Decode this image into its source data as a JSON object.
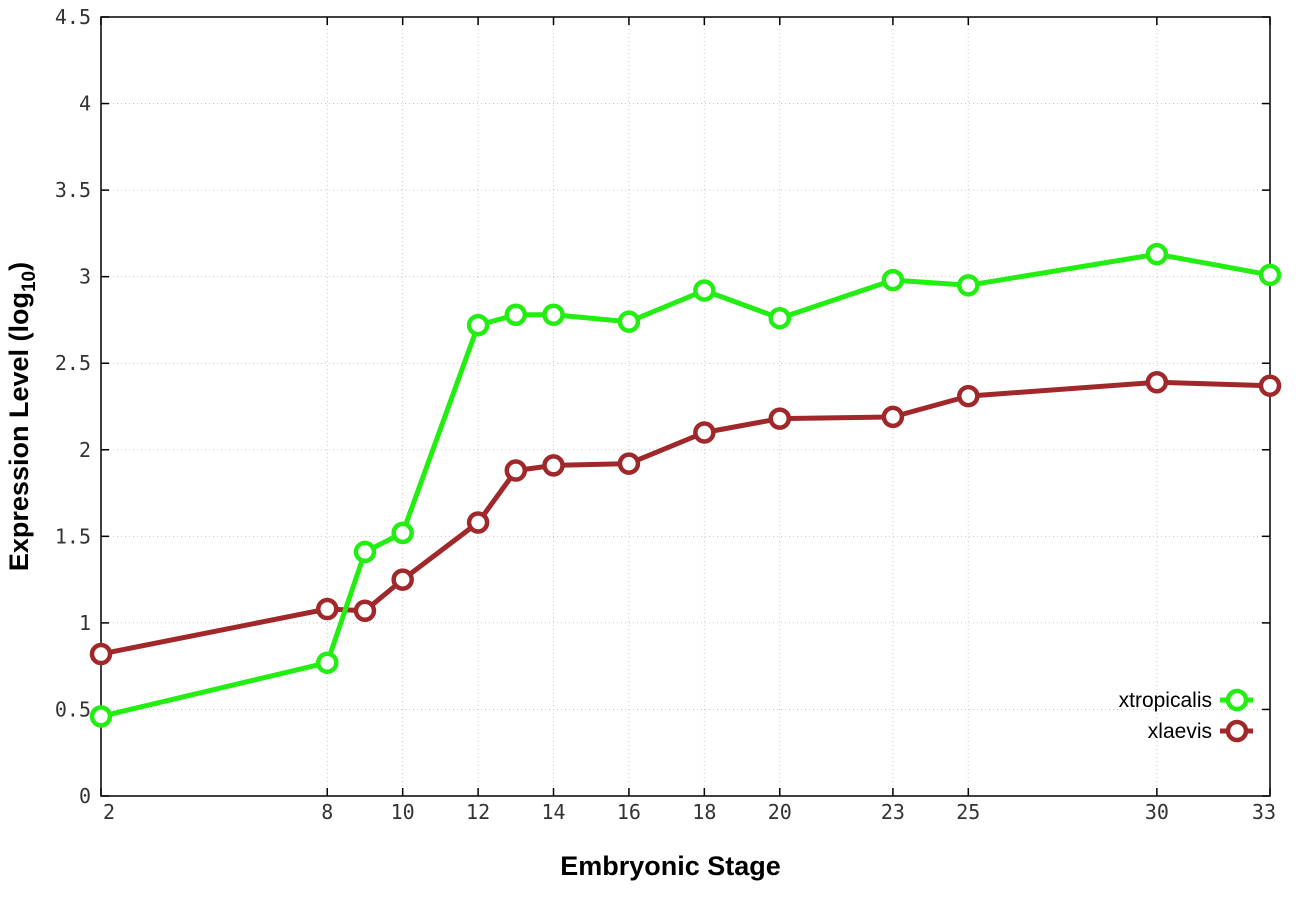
{
  "chart_data": {
    "type": "line",
    "title": "",
    "xlabel": "Embryonic Stage",
    "ylabel_main": "Expression Level (log",
    "ylabel_sub": "10",
    "ylabel_close": ")",
    "xlim": [
      2,
      33
    ],
    "ylim": [
      0,
      4.5
    ],
    "grid": true,
    "legend_position": "bottom-right",
    "x_ticks": [
      2,
      8,
      10,
      12,
      14,
      16,
      18,
      20,
      23,
      25,
      30,
      33
    ],
    "x_tick_labels": [
      "2",
      "8",
      "10",
      "12",
      "14",
      "16",
      "18",
      "20",
      "23",
      "25",
      "30",
      "33"
    ],
    "y_ticks": [
      0,
      0.5,
      1,
      1.5,
      2,
      2.5,
      3,
      3.5,
      4,
      4.5
    ],
    "y_tick_labels": [
      "0",
      "0.5",
      "1",
      "1.5",
      "2",
      "2.5",
      "3",
      "3.5",
      "4",
      "4.5"
    ],
    "x": [
      2,
      8,
      9,
      10,
      12,
      13,
      14,
      16,
      18,
      20,
      23,
      25,
      30,
      33
    ],
    "series": [
      {
        "name": "xtropicalis",
        "color": "#22ee11",
        "marker": "open-circle",
        "values": [
          0.46,
          0.77,
          1.41,
          1.52,
          2.72,
          2.78,
          2.78,
          2.74,
          2.92,
          2.76,
          2.98,
          2.95,
          3.13,
          3.01
        ]
      },
      {
        "name": "xlaevis",
        "color": "#a0282b",
        "marker": "open-circle",
        "values": [
          0.82,
          1.08,
          1.07,
          1.25,
          1.58,
          1.88,
          1.91,
          1.92,
          2.1,
          2.18,
          2.19,
          2.31,
          2.39,
          2.37
        ]
      }
    ]
  }
}
